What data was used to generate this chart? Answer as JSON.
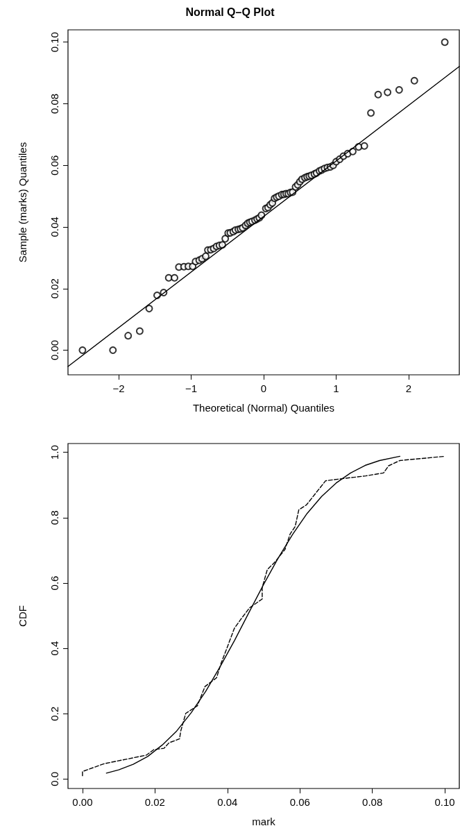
{
  "chart_data": [
    {
      "type": "scatter",
      "title": "Normal Q–Q Plot",
      "xlabel": "Theoretical (Normal) Quantiles",
      "ylabel": "Sample (marks) Quantiles",
      "grid": false,
      "legend": false,
      "xlim": [
        -2.7,
        2.7
      ],
      "ylim": [
        -0.008,
        0.104
      ],
      "xticks": [
        {
          "value": -2,
          "label": "−2"
        },
        {
          "value": -1,
          "label": "−1"
        },
        0,
        1,
        2
      ],
      "yticks": [
        {
          "value": 0,
          "label": "0.00"
        },
        {
          "value": 0.02,
          "label": "0.02"
        },
        {
          "value": 0.04,
          "label": "0.04"
        },
        {
          "value": 0.06,
          "label": "0.06"
        },
        {
          "value": 0.08,
          "label": "0.08"
        },
        {
          "value": 0.1,
          "label": "0.10"
        }
      ],
      "series": [
        {
          "marker": "circle",
          "color": "#000000",
          "x": [
            -2.5,
            -2.08,
            -1.87,
            -1.71,
            -1.58,
            -1.47,
            -1.38,
            -1.31,
            -1.23,
            -1.17,
            -1.1,
            -1.04,
            -0.98,
            -0.94,
            -0.89,
            -0.85,
            -0.8,
            -0.77,
            -0.73,
            -0.69,
            -0.65,
            -0.61,
            -0.57,
            -0.53,
            -0.49,
            -0.46,
            -0.42,
            -0.39,
            -0.35,
            -0.32,
            -0.29,
            -0.25,
            -0.22,
            -0.19,
            -0.16,
            -0.12,
            -0.09,
            -0.06,
            -0.03,
            0.03,
            0.06,
            0.09,
            0.12,
            0.15,
            0.18,
            0.21,
            0.25,
            0.28,
            0.31,
            0.34,
            0.37,
            0.4,
            0.44,
            0.47,
            0.5,
            0.53,
            0.57,
            0.6,
            0.63,
            0.66,
            0.7,
            0.73,
            0.77,
            0.8,
            0.84,
            0.88,
            0.92,
            0.96,
            1.0,
            1.05,
            1.1,
            1.16,
            1.23,
            1.31,
            1.39,
            1.48,
            1.58,
            1.71,
            1.87,
            2.08,
            2.5
          ],
          "values": [
            0.0,
            0.0,
            0.0047,
            0.0062,
            0.0135,
            0.0178,
            0.0187,
            0.0235,
            0.0235,
            0.027,
            0.0271,
            0.0272,
            0.0272,
            0.0288,
            0.0292,
            0.0297,
            0.0305,
            0.0325,
            0.0326,
            0.033,
            0.0337,
            0.034,
            0.0342,
            0.0362,
            0.038,
            0.0381,
            0.0385,
            0.039,
            0.0392,
            0.0394,
            0.0397,
            0.0405,
            0.0412,
            0.0415,
            0.0418,
            0.0422,
            0.0426,
            0.043,
            0.0438,
            0.046,
            0.0463,
            0.0472,
            0.0478,
            0.0493,
            0.0497,
            0.05,
            0.0505,
            0.0506,
            0.0508,
            0.0508,
            0.0512,
            0.0513,
            0.053,
            0.0537,
            0.0547,
            0.0555,
            0.056,
            0.0563,
            0.0565,
            0.0568,
            0.0572,
            0.0575,
            0.0582,
            0.0585,
            0.059,
            0.0593,
            0.0595,
            0.06,
            0.0612,
            0.062,
            0.063,
            0.0638,
            0.0645,
            0.066,
            0.0663,
            0.077,
            0.083,
            0.0837,
            0.0845,
            0.0875,
            0.1
          ]
        },
        {
          "type": "line",
          "marker": "none",
          "color": "#000000",
          "line_style": "solid",
          "x": [
            -2.7,
            2.7
          ],
          "values": [
            -0.0053,
            0.0921
          ]
        }
      ]
    },
    {
      "type": "line",
      "xlabel": "mark",
      "ylabel": "CDF",
      "grid": false,
      "legend": false,
      "xlim": [
        -0.004,
        0.104
      ],
      "ylim": [
        -0.029,
        1.027
      ],
      "xticks": [
        {
          "value": 0,
          "label": "0.00"
        },
        {
          "value": 0.02,
          "label": "0.02"
        },
        {
          "value": 0.04,
          "label": "0.04"
        },
        {
          "value": 0.06,
          "label": "0.06"
        },
        {
          "value": 0.08,
          "label": "0.08"
        },
        {
          "value": 0.1,
          "label": "0.10"
        }
      ],
      "yticks": [
        {
          "value": 0,
          "label": "0.0"
        },
        {
          "value": 0.2,
          "label": "0.2"
        },
        {
          "value": 0.4,
          "label": "0.4"
        },
        {
          "value": 0.6,
          "label": "0.6"
        },
        {
          "value": 0.8,
          "label": "0.8"
        },
        {
          "value": 1,
          "label": "1.0"
        }
      ],
      "series": [
        {
          "color": "#000000",
          "line_style": "solid",
          "x": [
            0.0066,
            0.01,
            0.014,
            0.018,
            0.022,
            0.026,
            0.03,
            0.034,
            0.038,
            0.042,
            0.046,
            0.05,
            0.054,
            0.058,
            0.062,
            0.066,
            0.07,
            0.074,
            0.078,
            0.082,
            0.0876
          ],
          "values": [
            0.018,
            0.028,
            0.045,
            0.069,
            0.104,
            0.147,
            0.203,
            0.268,
            0.344,
            0.425,
            0.511,
            0.596,
            0.676,
            0.749,
            0.813,
            0.865,
            0.906,
            0.937,
            0.96,
            0.975,
            0.988
          ]
        },
        {
          "color": "#000000",
          "line_style": "dashed",
          "x": [
            0,
            0,
            0.006,
            0.0176,
            0.0197,
            0.0225,
            0.0239,
            0.0268,
            0.0271,
            0.0285,
            0.0317,
            0.0338,
            0.037,
            0.0383,
            0.0395,
            0.0419,
            0.0437,
            0.0461,
            0.0496,
            0.0496,
            0.051,
            0.0531,
            0.0559,
            0.0573,
            0.0587,
            0.0597,
            0.0618,
            0.0643,
            0.0671,
            0.0713,
            0.0782,
            0.0831,
            0.0845,
            0.0876,
            0.1001
          ],
          "values": [
            0.01,
            0.023,
            0.047,
            0.073,
            0.09,
            0.094,
            0.111,
            0.123,
            0.146,
            0.201,
            0.224,
            0.283,
            0.31,
            0.356,
            0.39,
            0.461,
            0.489,
            0.524,
            0.551,
            0.586,
            0.641,
            0.664,
            0.703,
            0.75,
            0.773,
            0.824,
            0.839,
            0.874,
            0.913,
            0.919,
            0.928,
            0.937,
            0.959,
            0.975,
            0.988
          ]
        }
      ]
    }
  ]
}
